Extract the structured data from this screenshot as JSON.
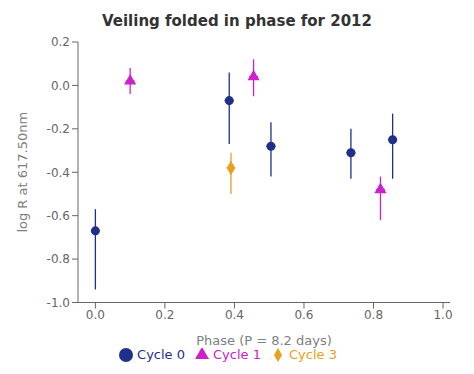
{
  "chart_data": {
    "type": "scatter",
    "title": "Veiling folded in phase for 2012",
    "x_label": "Phase (P = 8.2 days)",
    "y_label": "log R at 617.50nm",
    "xlim": [
      -0.05,
      1.02
    ],
    "ylim": [
      -1.0,
      0.2
    ],
    "xticks": [
      {
        "value": 0.0,
        "label": "0.0"
      },
      0.2,
      0.4,
      0.6,
      0.8,
      {
        "value": 1.0,
        "label": "1.0"
      }
    ],
    "yticks": [
      0.2,
      {
        "value": 0.0,
        "label": "0.0"
      },
      -0.2,
      -0.4,
      -0.6,
      -0.8,
      {
        "value": -1.0,
        "label": "-1.0"
      }
    ],
    "legend": "bottom",
    "series": [
      {
        "name": "Cycle 0",
        "color": "#1f2f8a",
        "marker": "circle",
        "x": [
          0.0,
          0.385,
          0.505,
          0.735,
          0.855
        ],
        "values": [
          -0.67,
          -0.07,
          -0.28,
          -0.31,
          -0.25
        ],
        "xerr": [
          0.013,
          0.013,
          0.013,
          0.013,
          0.013
        ],
        "yerr_lo": [
          0.27,
          0.2,
          0.14,
          0.12,
          0.18
        ],
        "yerr_hi": [
          0.1,
          0.13,
          0.11,
          0.11,
          0.12
        ]
      },
      {
        "name": "Cycle 1",
        "color": "#cc22cc",
        "marker": "triangle",
        "x": [
          0.1,
          0.455,
          0.82
        ],
        "values": [
          0.02,
          0.04,
          -0.48
        ],
        "xerr": [
          0.013,
          0.013,
          0.013
        ],
        "yerr_lo": [
          0.06,
          0.09,
          0.14
        ],
        "yerr_hi": [
          0.06,
          0.08,
          0.06
        ]
      },
      {
        "name": "Cycle 3",
        "color": "#e8a020",
        "marker": "diamond",
        "x": [
          0.39
        ],
        "values": [
          -0.38
        ],
        "xerr": [
          0.013
        ],
        "yerr_lo": [
          0.12
        ],
        "yerr_hi": [
          0.07
        ]
      }
    ]
  }
}
